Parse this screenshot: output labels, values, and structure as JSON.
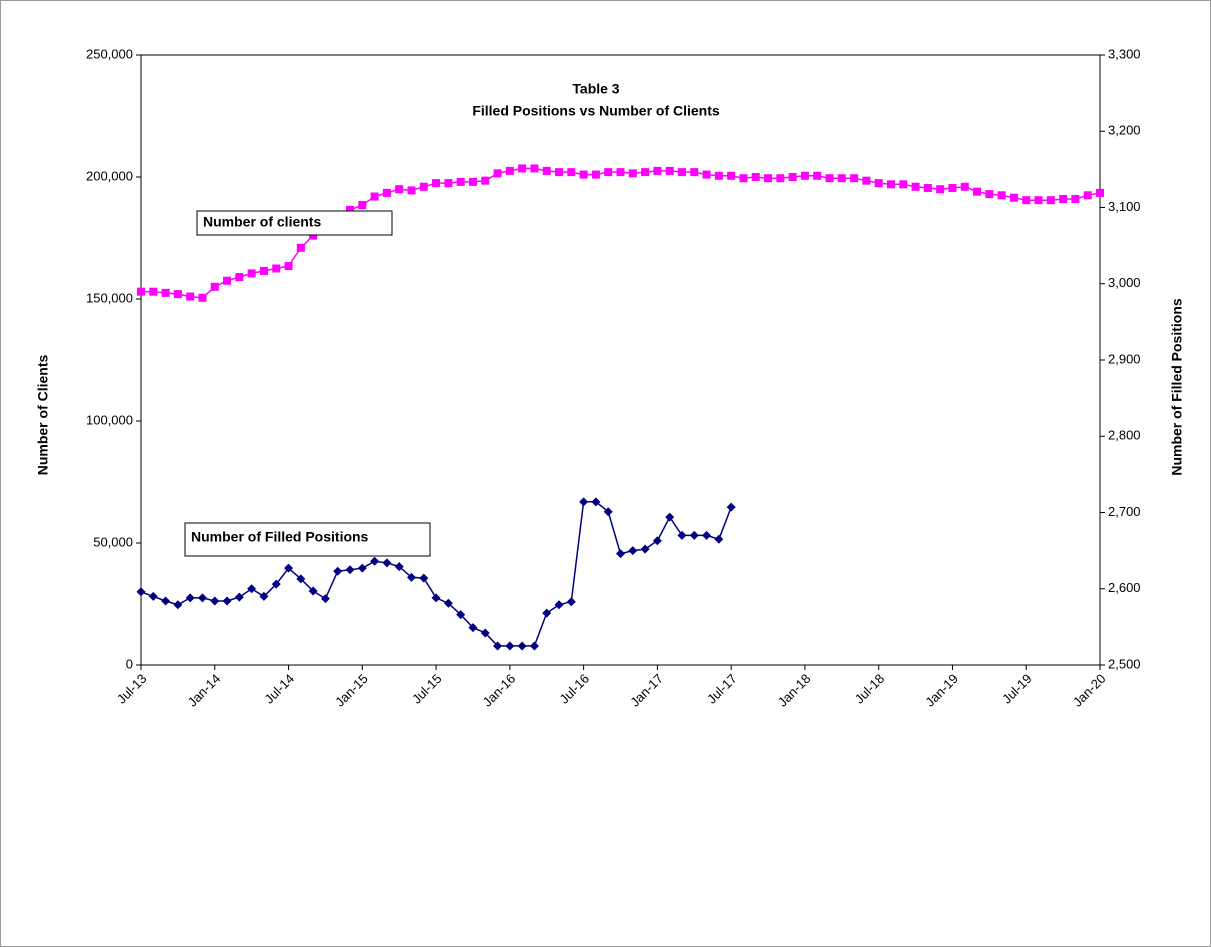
{
  "chart_data": {
    "type": "line",
    "title": [
      "Table 3",
      "Filled Positions vs Number of Clients"
    ],
    "ylabel": "Number of Clients",
    "y2label": "Number of Filled Positions",
    "annotations": [
      "Number of clients",
      "Number of Filled Positions"
    ],
    "x": [
      "2013-07",
      "2013-08",
      "2013-09",
      "2013-10",
      "2013-11",
      "2013-12",
      "2014-01",
      "2014-02",
      "2014-03",
      "2014-04",
      "2014-05",
      "2014-06",
      "2014-07",
      "2014-08",
      "2014-09",
      "2014-10",
      "2014-11",
      "2014-12",
      "2015-01",
      "2015-02",
      "2015-03",
      "2015-04",
      "2015-05",
      "2015-06",
      "2015-07",
      "2015-08",
      "2015-09",
      "2015-10",
      "2015-11",
      "2015-12",
      "2016-01",
      "2016-02",
      "2016-03",
      "2016-04",
      "2016-05",
      "2016-06",
      "2016-07",
      "2016-08",
      "2016-09",
      "2016-10",
      "2016-11",
      "2016-12",
      "2017-01",
      "2017-02",
      "2017-03",
      "2017-04",
      "2017-05",
      "2017-06",
      "2017-07",
      "2017-08",
      "2017-09",
      "2017-10",
      "2017-11",
      "2017-12",
      "2018-01",
      "2018-02",
      "2018-03",
      "2018-04",
      "2018-05",
      "2018-06",
      "2018-07",
      "2018-08",
      "2018-09",
      "2018-10",
      "2018-11",
      "2018-12",
      "2019-01",
      "2019-02",
      "2019-03",
      "2019-04",
      "2019-05",
      "2019-06",
      "2019-07",
      "2019-08",
      "2019-09",
      "2019-10",
      "2019-11",
      "2019-12",
      "2020-01"
    ],
    "xlim": [
      "2013-07",
      "2020-01"
    ],
    "xticks": [
      {
        "value": "2013-07",
        "label": "Jul-13"
      },
      {
        "value": "2014-01",
        "label": "Jan-14"
      },
      {
        "value": "2014-07",
        "label": "Jul-14"
      },
      {
        "value": "2015-01",
        "label": "Jan-15"
      },
      {
        "value": "2015-07",
        "label": "Jul-15"
      },
      {
        "value": "2016-01",
        "label": "Jan-16"
      },
      {
        "value": "2016-07",
        "label": "Jul-16"
      },
      {
        "value": "2017-01",
        "label": "Jan-17"
      },
      {
        "value": "2017-07",
        "label": "Jul-17"
      },
      {
        "value": "2018-01",
        "label": "Jan-18"
      },
      {
        "value": "2018-07",
        "label": "Jul-18"
      },
      {
        "value": "2019-01",
        "label": "Jan-19"
      },
      {
        "value": "2019-07",
        "label": "Jul-19"
      },
      {
        "value": "2020-01",
        "label": "Jan-20"
      }
    ],
    "ylim": [
      0,
      250000
    ],
    "yticks": [
      0,
      {
        "value": 50000,
        "label": "50,000"
      },
      {
        "value": 100000,
        "label": "100,000"
      },
      {
        "value": 150000,
        "label": "150,000"
      },
      {
        "value": 200000,
        "label": "200,000"
      },
      {
        "value": 250000,
        "label": "250,000"
      }
    ],
    "y2lim": [
      2500,
      3300
    ],
    "y2ticks": [
      {
        "value": 2500,
        "label": "2,500"
      },
      {
        "value": 2600,
        "label": "2,600"
      },
      {
        "value": 2700,
        "label": "2,700"
      },
      {
        "value": 2800,
        "label": "2,800"
      },
      {
        "value": 2900,
        "label": "2,900"
      },
      {
        "value": 3000,
        "label": "3,000"
      },
      {
        "value": 3100,
        "label": "3,100"
      },
      {
        "value": 3200,
        "label": "3,200"
      },
      {
        "value": 3300,
        "label": "3,300"
      }
    ],
    "series": [
      {
        "color": "#ff00ff",
        "marker": "square",
        "axis": "y",
        "values": [
          153000,
          153000,
          152500,
          152000,
          151000,
          150500,
          155000,
          157500,
          159000,
          160500,
          161500,
          162500,
          163500,
          171000,
          176000,
          180000,
          183000,
          186500,
          188500,
          192000,
          193500,
          195000,
          194500,
          196000,
          197500,
          197500,
          198000,
          198000,
          198500,
          201500,
          202500,
          203500,
          203500,
          202500,
          202000,
          202000,
          201000,
          201000,
          202000,
          202000,
          201500,
          202000,
          202500,
          202500,
          202000,
          202000,
          201000,
          200500,
          200500,
          199500,
          200000,
          199500,
          199500,
          200000,
          200500,
          200500,
          199500,
          199500,
          199500,
          198500,
          197500,
          197000,
          197000,
          196000,
          195500,
          195000,
          195500,
          196000,
          194000,
          193000,
          192500,
          191500,
          190500,
          190500,
          190500,
          191000,
          191000,
          192500,
          193500
        ]
      },
      {
        "color": "#000080",
        "marker": "diamond",
        "axis": "y2",
        "values": [
          2596,
          2590,
          2584,
          2579,
          2588,
          2588,
          2584,
          2584,
          2589,
          2600,
          2590,
          2606,
          2627,
          2613,
          2597,
          2587,
          2623,
          2625,
          2627,
          2636,
          2634,
          2629,
          2615,
          2614,
          2588,
          2581,
          2566,
          2549,
          2542,
          2525,
          2525,
          2525,
          2525,
          2568,
          2579,
          2583,
          2714,
          2714,
          2701,
          2646,
          2650,
          2652,
          2663,
          2694,
          2670,
          2670,
          2670,
          2665,
          2707,
          null,
          null,
          null,
          null,
          null,
          null,
          null,
          null,
          null,
          null,
          null,
          null,
          null,
          null,
          null,
          null,
          null,
          null,
          null,
          null,
          null,
          null,
          null,
          null,
          null,
          null,
          null,
          null,
          null,
          null
        ]
      }
    ]
  }
}
